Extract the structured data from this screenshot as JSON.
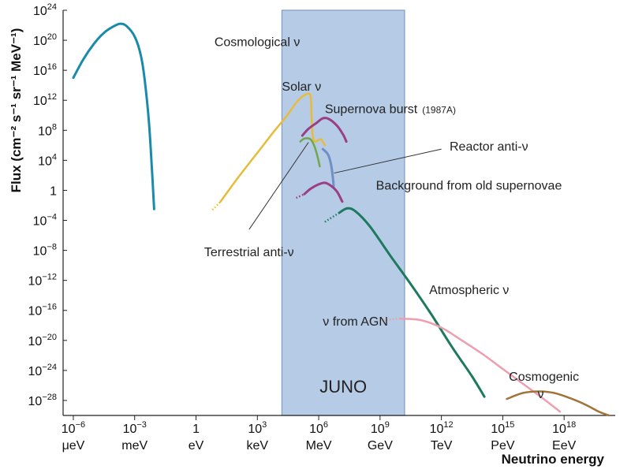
{
  "chart_data": {
    "type": "line",
    "ylabel": "Flux (cm⁻² s⁻¹ sr⁻¹ MeV⁻¹)",
    "xlabel": "Neutrino energy",
    "x_scale": "log",
    "y_scale": "log",
    "xlim_log10_eV": [
      -6.5,
      20.5
    ],
    "ylim_log10": [
      -30,
      24
    ],
    "y_ticks": [
      {
        "exp": 24,
        "text": "10",
        "sup": "24"
      },
      {
        "exp": 20,
        "text": "10",
        "sup": "20"
      },
      {
        "exp": 16,
        "text": "10",
        "sup": "16"
      },
      {
        "exp": 12,
        "text": "10",
        "sup": "12"
      },
      {
        "exp": 8,
        "text": "10",
        "sup": "8"
      },
      {
        "exp": 4,
        "text": "10",
        "sup": "4"
      },
      {
        "exp": 0,
        "text": "1",
        "sup": ""
      },
      {
        "exp": -4,
        "text": "10",
        "sup": "−4"
      },
      {
        "exp": -8,
        "text": "10",
        "sup": "−8"
      },
      {
        "exp": -12,
        "text": "10",
        "sup": "−12"
      },
      {
        "exp": -16,
        "text": "10",
        "sup": "−16"
      },
      {
        "exp": -20,
        "text": "10",
        "sup": "−20"
      },
      {
        "exp": -24,
        "text": "10",
        "sup": "−24"
      },
      {
        "exp": -28,
        "text": "10",
        "sup": "−28"
      }
    ],
    "x_ticks": [
      {
        "exp": -6,
        "text": "10",
        "sup": "−6",
        "unit": "μeV"
      },
      {
        "exp": -3,
        "text": "10",
        "sup": "−3",
        "unit": "meV"
      },
      {
        "exp": 0,
        "text": "1",
        "sup": "",
        "unit": "eV"
      },
      {
        "exp": 3,
        "text": "10",
        "sup": "3",
        "unit": "keV"
      },
      {
        "exp": 6,
        "text": "10",
        "sup": "6",
        "unit": "MeV"
      },
      {
        "exp": 9,
        "text": "10",
        "sup": "9",
        "unit": "GeV"
      },
      {
        "exp": 12,
        "text": "10",
        "sup": "12",
        "unit": "TeV"
      },
      {
        "exp": 15,
        "text": "10",
        "sup": "15",
        "unit": "PeV"
      },
      {
        "exp": 18,
        "text": "10",
        "sup": "18",
        "unit": "EeV"
      }
    ],
    "band": {
      "label": "JUNO",
      "x_from": 4.2,
      "x_to": 10.2,
      "color": "#b5cbe6",
      "edge": "#7f9ac4"
    },
    "series": [
      {
        "name": "Cosmological ν",
        "color": "#1a8aab",
        "width": 3,
        "points": [
          [
            -6,
            15
          ],
          [
            -5.5,
            17.5
          ],
          [
            -5,
            19.5
          ],
          [
            -4.5,
            21
          ],
          [
            -4,
            21.9
          ],
          [
            -3.7,
            22.2
          ],
          [
            -3.4,
            21.9
          ],
          [
            -3,
            20.5
          ],
          [
            -2.7,
            18
          ],
          [
            -2.5,
            14.5
          ],
          [
            -2.3,
            9
          ],
          [
            -2.15,
            2.5
          ],
          [
            -2.05,
            -2.5
          ]
        ]
      },
      {
        "name": "Solar ν",
        "color": "#e8bc3a",
        "width": 2.5,
        "points": [
          [
            1.2,
            -1.5
          ],
          [
            2,
            1.5
          ],
          [
            3,
            5
          ],
          [
            3.8,
            7.8
          ],
          [
            4.4,
            9.8
          ],
          [
            5,
            12
          ],
          [
            5.4,
            12.8
          ],
          [
            5.6,
            12.6
          ],
          [
            5.65,
            10
          ],
          [
            5.7,
            7.5
          ],
          [
            5.8,
            6.5
          ],
          [
            6.1,
            6.8
          ],
          [
            6.3,
            6
          ]
        ]
      },
      {
        "name": "Supernova burst",
        "color": "#9a3f84",
        "width": 3,
        "points": [
          [
            5.2,
            7.3
          ],
          [
            5.5,
            8.2
          ],
          [
            5.9,
            9
          ],
          [
            6.2,
            9.6
          ],
          [
            6.5,
            9.5
          ],
          [
            6.9,
            8.6
          ],
          [
            7.2,
            7.4
          ],
          [
            7.35,
            6.5
          ]
        ]
      },
      {
        "name": "Terrestrial anti-ν",
        "color": "#6ea84a",
        "width": 2.5,
        "points": [
          [
            5.1,
            6.5
          ],
          [
            5.3,
            6.9
          ],
          [
            5.6,
            6.8
          ],
          [
            5.8,
            5.8
          ],
          [
            5.95,
            4.4
          ],
          [
            6.05,
            3.2
          ]
        ]
      },
      {
        "name": "Reactor anti-ν",
        "color": "#6f8fc6",
        "width": 3,
        "points": [
          [
            6.2,
            5.5
          ],
          [
            6.45,
            4.8
          ],
          [
            6.6,
            3.5
          ],
          [
            6.7,
            1.5
          ],
          [
            6.73,
            0.5
          ]
        ]
      },
      {
        "name": "Background from old supernovae",
        "color": "#9a3f84",
        "width": 3,
        "points": [
          [
            5.3,
            -0.5
          ],
          [
            5.6,
            0.2
          ],
          [
            6,
            0.8
          ],
          [
            6.3,
            1
          ],
          [
            6.6,
            0.6
          ],
          [
            6.9,
            -0.2
          ],
          [
            7.15,
            -1.5
          ]
        ]
      },
      {
        "name": "Atmospheric ν",
        "color": "#1e7a5e",
        "width": 3,
        "points": [
          [
            7,
            -3
          ],
          [
            7.4,
            -2.4
          ],
          [
            7.8,
            -2.8
          ],
          [
            8.5,
            -4.8
          ],
          [
            9.5,
            -8.7
          ],
          [
            10.5,
            -12.5
          ],
          [
            11.5,
            -16.5
          ],
          [
            12.5,
            -20.8
          ],
          [
            13.5,
            -24.8
          ],
          [
            14.1,
            -27.5
          ]
        ]
      },
      {
        "name": "ν from AGN",
        "color": "#ec9fb0",
        "width": 2.5,
        "points": [
          [
            10,
            -17.1
          ],
          [
            11,
            -17.3
          ],
          [
            12,
            -18.3
          ],
          [
            13,
            -20
          ],
          [
            14,
            -21.8
          ],
          [
            15,
            -23.8
          ],
          [
            16,
            -25.8
          ],
          [
            17,
            -27.8
          ],
          [
            17.8,
            -29.5
          ]
        ]
      },
      {
        "name": "Cosmogenic ν",
        "color": "#a07438",
        "width": 2.5,
        "points": [
          [
            15.2,
            -27.8
          ],
          [
            16,
            -27
          ],
          [
            16.8,
            -26.8
          ],
          [
            17.5,
            -27
          ],
          [
            18.2,
            -27.6
          ],
          [
            19,
            -28.5
          ],
          [
            19.7,
            -29.5
          ],
          [
            20.2,
            -30
          ]
        ]
      }
    ],
    "dotted_leads": [
      {
        "color": "#e8bc3a",
        "points": [
          [
            0.8,
            -2.6
          ],
          [
            1.2,
            -1.5
          ]
        ]
      },
      {
        "color": "#9a3f84",
        "points": [
          [
            4.9,
            -1
          ],
          [
            5.3,
            -0.5
          ]
        ]
      },
      {
        "color": "#1e7a5e",
        "points": [
          [
            6.3,
            -4.2
          ],
          [
            7,
            -3
          ]
        ]
      },
      {
        "color": "#ec9fb0",
        "points": [
          [
            9,
            -17.3
          ],
          [
            10,
            -17.1
          ]
        ]
      }
    ],
    "annotations": [
      {
        "id": "cosmological",
        "text": "Cosmological ν",
        "x": 0.9,
        "y": 19.2
      },
      {
        "id": "solar",
        "text": "Solar ν",
        "x": 4.2,
        "y": 13.3
      },
      {
        "id": "supernova",
        "text": "Supernova burst",
        "small": "(1987A)",
        "x": 6.3,
        "y": 10.3
      },
      {
        "id": "reactor",
        "text": "Reactor anti-ν",
        "x": 12.4,
        "y": 5.3
      },
      {
        "id": "background",
        "text": "Background from old supernovae",
        "x": 8.8,
        "y": 0.1
      },
      {
        "id": "terrestrial",
        "text": "Terrestrial anti-ν",
        "x": 0.4,
        "y": -8.8
      },
      {
        "id": "atmospheric",
        "text": "Atmospheric ν",
        "x": 11.4,
        "y": -13.8
      },
      {
        "id": "agn",
        "text": "ν from AGN",
        "x": 6.2,
        "y": -18
      },
      {
        "id": "cosmogenic1",
        "text": "Cosmogenic",
        "x": 15.3,
        "y": -25.4
      },
      {
        "id": "cosmogenic2",
        "text": "ν",
        "x": 16.7,
        "y": -27.7
      }
    ],
    "leader_lines": [
      {
        "from": [
          5.5,
          6.4
        ],
        "to": [
          2.6,
          -5.2
        ]
      },
      {
        "from": [
          12,
          5.5
        ],
        "to": [
          6.75,
          2.3
        ]
      }
    ]
  }
}
